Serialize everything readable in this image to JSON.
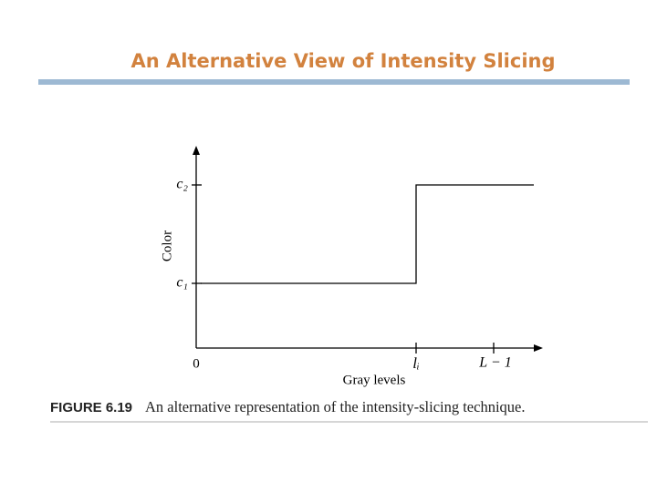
{
  "title": "An Alternative View of Intensity Slicing",
  "figure": {
    "y_axis_label": "Color",
    "x_axis_label": "Gray levels",
    "y_ticks": [
      "c₂",
      "c₁"
    ],
    "x_ticks": [
      "0",
      "lᵢ",
      "L − 1"
    ],
    "caption_label": "FIGURE 6.19",
    "caption_text": "An alternative representation of the intensity-slicing technique."
  }
}
